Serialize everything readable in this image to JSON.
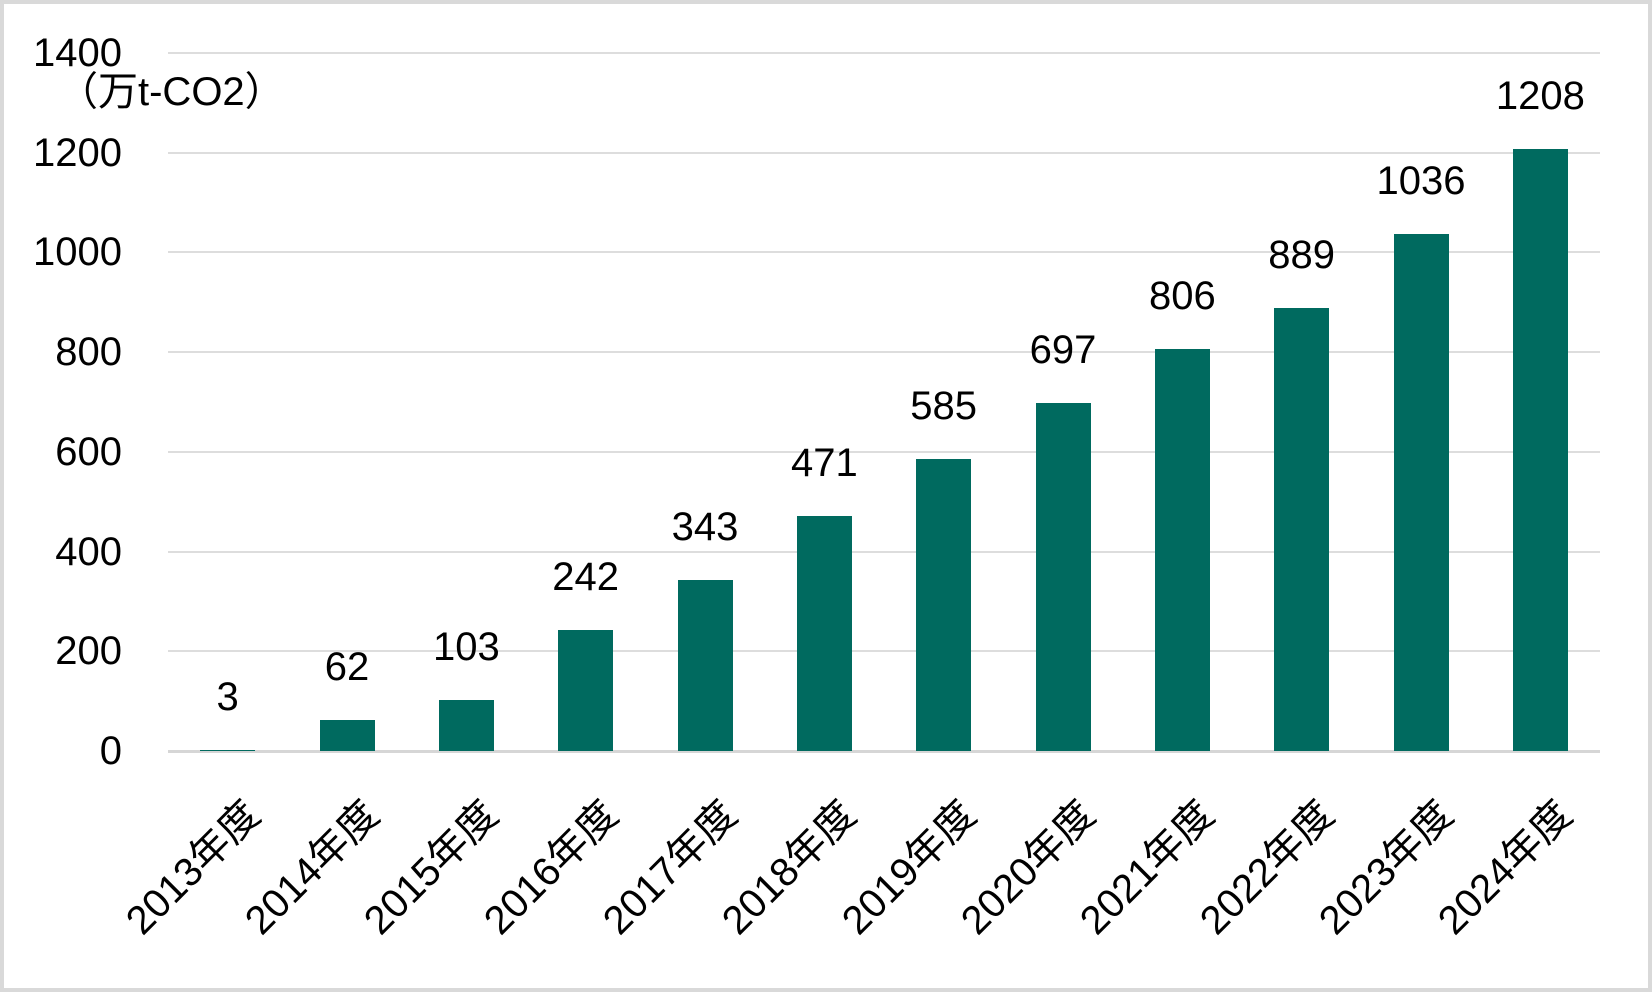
{
  "chart_data": {
    "type": "bar",
    "title": "",
    "unit_label": "（万t-CO2）",
    "categories": [
      "2013年度",
      "2014年度",
      "2015年度",
      "2016年度",
      "2017年度",
      "2018年度",
      "2019年度",
      "2020年度",
      "2021年度",
      "2022年度",
      "2023年度",
      "2024年度"
    ],
    "values": [
      3,
      62,
      103,
      242,
      343,
      471,
      585,
      697,
      806,
      889,
      1036,
      1208
    ],
    "xlabel": "",
    "ylabel": "（万t-CO2）",
    "ylim": [
      0,
      1400
    ],
    "yticks": [
      0,
      200,
      400,
      600,
      800,
      1000,
      1200,
      1400
    ],
    "grid": true,
    "legend_position": "none",
    "data_labels": true,
    "colors": {
      "bar": "#006a5f",
      "gridline": "#dddddd",
      "axis_line": "#d6d6d6",
      "frame_border": "#d9d9d9",
      "text": "#000000",
      "background": "#ffffff"
    }
  }
}
